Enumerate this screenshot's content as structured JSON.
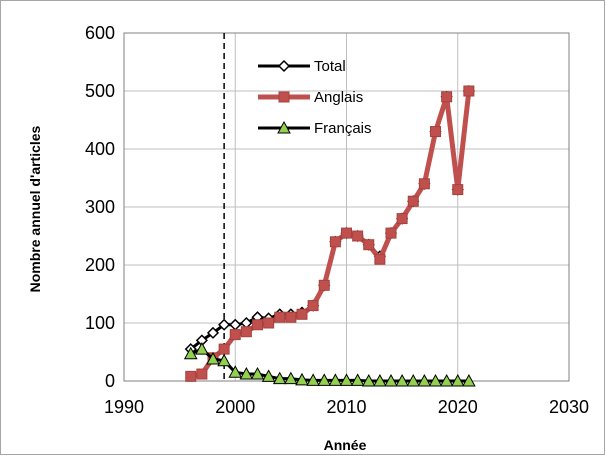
{
  "chart_data": {
    "type": "line",
    "title": "",
    "xlabel": "Année",
    "ylabel": "Nombre annuel d'articles",
    "xlim": [
      1990,
      2030
    ],
    "ylim": [
      0,
      600
    ],
    "xticks": [
      1990,
      2000,
      2010,
      2020,
      2030
    ],
    "yticks": [
      0,
      100,
      200,
      300,
      400,
      500,
      600
    ],
    "grid": true,
    "legend_position": "top-center",
    "reference_line": {
      "x": 1999,
      "style": "dashed",
      "color": "#000000"
    },
    "x": [
      1996,
      1997,
      1998,
      1999,
      2000,
      2001,
      2002,
      2003,
      2004,
      2005,
      2006,
      2007,
      2008,
      2009,
      2010,
      2011,
      2012,
      2013,
      2014,
      2015,
      2016,
      2017,
      2018,
      2019,
      2020,
      2021
    ],
    "series": [
      {
        "name": "Total",
        "color": "#000000",
        "marker": "diamond",
        "values": [
          55,
          70,
          83,
          97,
          97,
          100,
          110,
          108,
          115,
          115,
          118,
          130,
          165,
          240,
          255,
          250,
          235,
          215,
          255,
          280,
          310,
          340,
          430,
          490,
          330,
          500
        ]
      },
      {
        "name": "Anglais",
        "color": "#c0504d",
        "marker": "square",
        "values": [
          8,
          12,
          40,
          55,
          80,
          85,
          97,
          100,
          110,
          110,
          115,
          130,
          165,
          240,
          255,
          250,
          235,
          210,
          255,
          280,
          310,
          340,
          430,
          490,
          330,
          500
        ]
      },
      {
        "name": "Français",
        "color": "#000000",
        "marker": "triangle",
        "values": [
          47,
          55,
          38,
          35,
          15,
          12,
          12,
          8,
          4,
          4,
          2,
          1,
          1,
          1,
          1,
          1,
          0,
          0,
          0,
          0,
          0,
          0,
          0,
          0,
          0,
          0
        ]
      }
    ]
  }
}
